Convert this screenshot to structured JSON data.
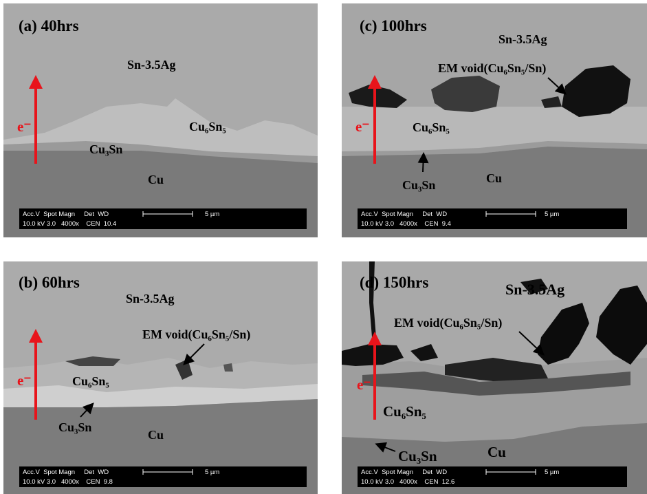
{
  "panels": [
    {
      "label": "(a) 40hrs",
      "annotations": [
        "Sn-3.5Ag",
        "Cu₆Sn₅",
        "Cu₃Sn",
        "Cu",
        "e⁻"
      ],
      "databar": {
        "header": "Acc.V  Spot Magn     Det  WD",
        "values": "10.0 kV 3.0   4000x    CEN  10.4",
        "scale": "5 µm"
      }
    },
    {
      "label": "(b) 60hrs",
      "annotations": [
        "Sn-3.5Ag",
        "EM void(Cu₆Sn₅/Sn)",
        "Cu₆Sn₅",
        "Cu₃Sn",
        "Cu",
        "e⁻"
      ],
      "databar": {
        "header": "Acc.V  Spot Magn     Det  WD",
        "values": "10.0 kV 3.0   4000x    CEN  9.8",
        "scale": "5 µm"
      }
    },
    {
      "label": "(c) 100hrs",
      "annotations": [
        "Sn-3.5Ag",
        "EM void(Cu₆Sn₅/Sn)",
        "Cu₆Sn₅",
        "Cu₃Sn",
        "Cu",
        "e⁻"
      ],
      "databar": {
        "header": "Acc.V  Spot Magn     Det  WD",
        "values": "10.0 kV 3.0   4000x    CEN  9.4",
        "scale": "5 µm"
      }
    },
    {
      "label": "(d) 150hrs",
      "annotations": [
        "Sn-3.5Ag",
        "EM void(Cu₆Sn₅/Sn)",
        "Cu₆Sn₅",
        "Cu₃Sn",
        "Cu",
        "e⁻"
      ],
      "databar": {
        "header": "Acc.V  Spot Magn     Det  WD",
        "values": "10.0 kV 3.0   4000x    CEN  12.6",
        "scale": "5 µm"
      }
    }
  ]
}
